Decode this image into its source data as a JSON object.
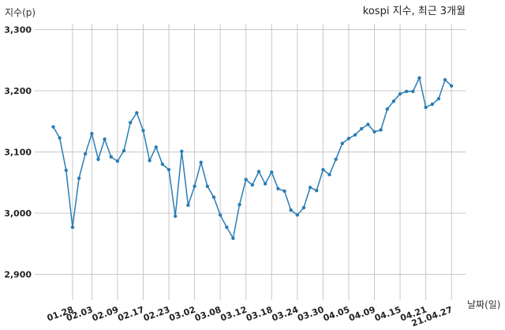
{
  "chart_data": {
    "type": "line",
    "title": "kospi 지수, 최근 3개월",
    "xlabel": "날짜(일)",
    "ylabel": "지수(p)",
    "ylim": [
      2850,
      3320
    ],
    "yticks": [
      2900,
      3000,
      3100,
      3200,
      3300
    ],
    "ytick_labels": [
      "2,900",
      "3,000",
      "3,100",
      "3,200",
      "3,300"
    ],
    "xtick_labels": [
      "01.28",
      "02.03",
      "02.09",
      "02.17",
      "02.23",
      "03.02",
      "03.08",
      "03.12",
      "03.18",
      "03.24",
      "03.30",
      "04.05",
      "04.09",
      "04.15",
      "04.21",
      "21.04.27"
    ],
    "xtick_index": [
      3,
      6,
      10,
      14,
      18,
      22,
      26,
      30,
      34,
      38,
      42,
      46,
      50,
      54,
      58,
      62
    ],
    "grid": true,
    "color": "#2a7db5",
    "values": [
      3141,
      3123,
      3070,
      2977,
      3057,
      3097,
      3130,
      3088,
      3121,
      3092,
      3085,
      3102,
      3148,
      3164,
      3135,
      3086,
      3108,
      3080,
      3071,
      2995,
      3101,
      3013,
      3044,
      3083,
      3044,
      3026,
      2997,
      2977,
      2959,
      3014,
      3055,
      3046,
      3068,
      3048,
      3067,
      3040,
      3036,
      3005,
      2997,
      3009,
      3042,
      3037,
      3071,
      3063,
      3088,
      3114,
      3122,
      3128,
      3138,
      3145,
      3133,
      3136,
      3170,
      3183,
      3195,
      3199,
      3199,
      3221,
      3173,
      3178,
      3187,
      3218,
      3208
    ]
  }
}
